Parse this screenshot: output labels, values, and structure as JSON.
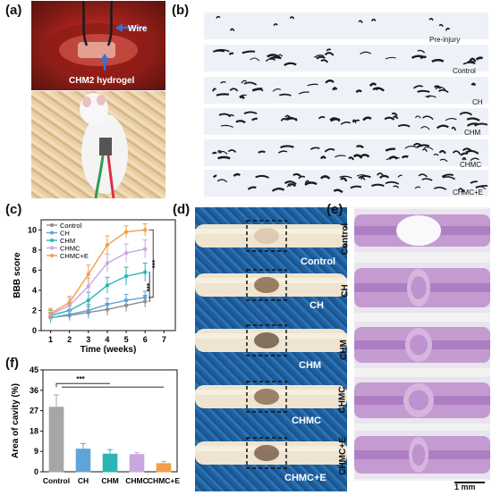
{
  "panels": {
    "a": {
      "label": "(a)",
      "wire_label": "Wire",
      "hydrogel_label": "CHM2 hydrogel"
    },
    "b": {
      "label": "(b)",
      "rows": [
        "Pre-injury",
        "Control",
        "CH",
        "CHM",
        "CHMC",
        "CHMC+E"
      ]
    },
    "c": {
      "label": "(c)"
    },
    "d": {
      "label": "(d)",
      "rows": [
        "Control",
        "CH",
        "CHM",
        "CHMC",
        "CHMC+E"
      ]
    },
    "e": {
      "label": "(e)",
      "rows": [
        "Control",
        "CH",
        "CHM",
        "CHMC",
        "CHMC+E"
      ],
      "scale_bar": "1 mm"
    },
    "f": {
      "label": "(f)"
    }
  },
  "chart_data": [
    {
      "panel": "c",
      "type": "line",
      "xlabel": "Time (weeks)",
      "ylabel": "BBB score",
      "x": [
        1,
        2,
        3,
        4,
        5,
        6
      ],
      "xticks": [
        1,
        2,
        3,
        4,
        5,
        6,
        7
      ],
      "xlim": [
        0.5,
        7.6
      ],
      "yticks": [
        0,
        2,
        4,
        6,
        8,
        10
      ],
      "ylim": [
        0,
        11
      ],
      "legend": "top-left",
      "significance": [
        "***",
        "***"
      ],
      "series": [
        {
          "name": "Control",
          "color": "#8c8c8c",
          "values": [
            1.3,
            1.5,
            1.8,
            2.1,
            2.5,
            2.9
          ],
          "errors": [
            0.5,
            0.5,
            0.6,
            0.6,
            0.6,
            0.6
          ]
        },
        {
          "name": "CH",
          "color": "#5fa4d8",
          "values": [
            1.3,
            1.6,
            2.0,
            2.6,
            3.0,
            3.3
          ],
          "errors": [
            0.5,
            0.5,
            0.6,
            0.6,
            0.6,
            0.6
          ]
        },
        {
          "name": "CHM",
          "color": "#2bb5b5",
          "values": [
            1.5,
            2.0,
            3.0,
            4.5,
            5.4,
            5.8
          ],
          "errors": [
            0.5,
            0.6,
            0.8,
            0.8,
            0.9,
            0.9
          ]
        },
        {
          "name": "CHMC",
          "color": "#c9a8e0",
          "values": [
            1.6,
            2.5,
            4.4,
            6.7,
            7.7,
            8.1
          ],
          "errors": [
            0.5,
            0.7,
            0.8,
            0.9,
            0.9,
            0.9
          ]
        },
        {
          "name": "CHMC+E",
          "color": "#f0a04a",
          "values": [
            1.7,
            2.8,
            5.6,
            8.5,
            9.8,
            10.0
          ],
          "errors": [
            0.5,
            0.6,
            0.9,
            0.9,
            0.6,
            0.6
          ]
        }
      ]
    },
    {
      "panel": "f",
      "type": "bar",
      "ylabel": "Area of cavity (%)",
      "categories": [
        "Control",
        "CH",
        "CHM",
        "CHMC",
        "CHMC+E"
      ],
      "values": [
        28.5,
        10.0,
        7.8,
        7.6,
        3.6
      ],
      "errors": [
        5.5,
        2.5,
        2.0,
        0.8,
        1.0
      ],
      "colors": [
        "#a6a6a6",
        "#5fa4d8",
        "#2bb5b5",
        "#c9a8e0",
        "#f0a04a"
      ],
      "yticks": [
        0,
        9,
        18,
        27,
        36,
        45
      ],
      "ylim": [
        0,
        45
      ],
      "significance": "***"
    }
  ]
}
